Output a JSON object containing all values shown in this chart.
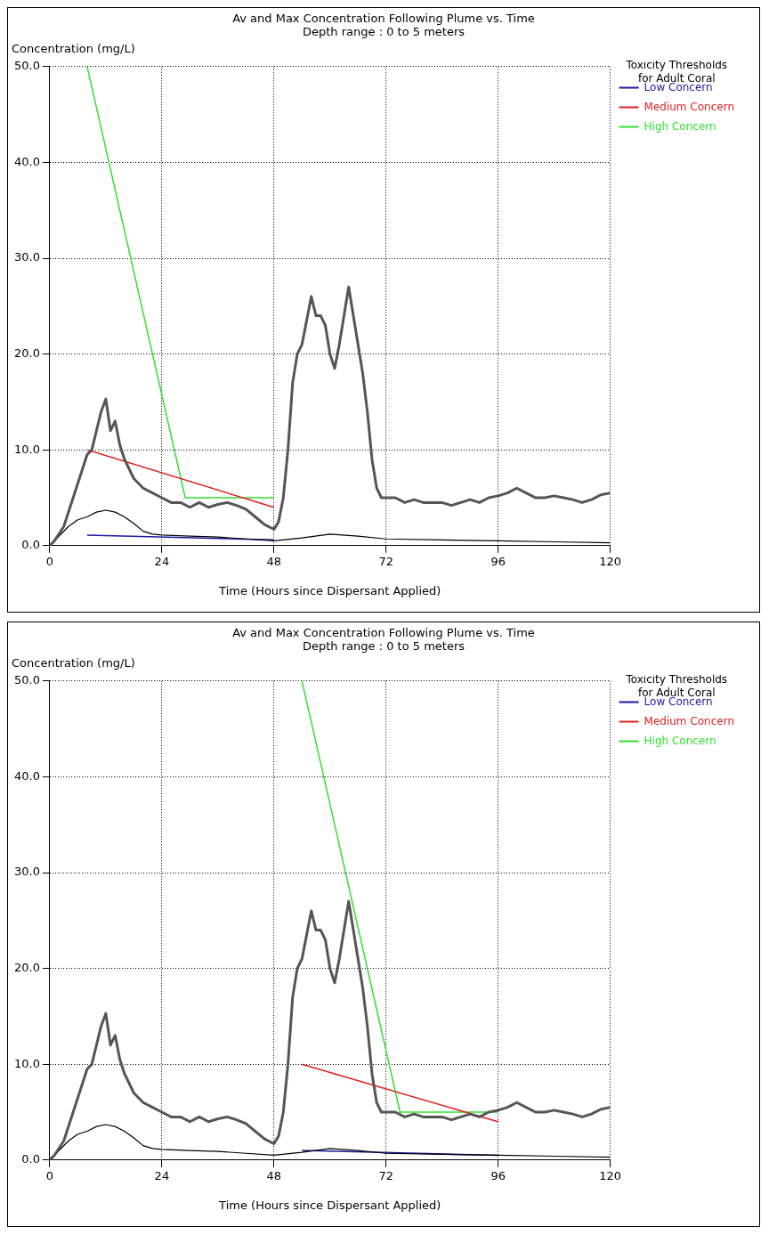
{
  "chart_data": [
    {
      "type": "line",
      "title": "Av and Max Concentration Following Plume vs. Time",
      "subtitle": "Depth range : 0 to 5 meters",
      "ylabel": "Concentration (mg/L)",
      "xlabel": "Time (Hours since Dispersant Applied)",
      "legend_title": "Toxicity Thresholds for Adult Coral",
      "legend": "top right",
      "grid": true,
      "marker": "none",
      "line_style": "solid",
      "xlim": [
        0,
        120
      ],
      "xticks": [
        0,
        24,
        48,
        72,
        96,
        120
      ],
      "ylim": [
        0,
        50
      ],
      "yticks": [
        {
          "value": 0,
          "label": "0.0"
        },
        {
          "value": 10,
          "label": "10.0"
        },
        {
          "value": 20,
          "label": "20.0"
        },
        {
          "value": 30,
          "label": "30.0"
        },
        {
          "value": 40,
          "label": "40.0"
        },
        {
          "value": 50,
          "label": "50.0"
        }
      ],
      "series": [
        {
          "color": "#555555",
          "x": [
            0,
            1,
            3,
            5,
            7,
            8,
            9,
            10,
            11,
            12,
            13,
            14,
            15,
            16,
            17,
            18,
            20,
            22,
            24,
            26,
            28,
            30,
            32,
            34,
            36,
            38,
            40,
            42,
            44,
            46,
            48,
            49,
            50,
            51,
            52,
            53,
            54,
            55,
            56,
            57,
            58,
            59,
            60,
            61,
            62,
            63,
            64,
            65,
            66,
            67,
            68,
            69,
            70,
            71,
            72,
            74,
            76,
            78,
            80,
            82,
            84,
            86,
            88,
            90,
            92,
            94,
            96,
            98,
            100,
            102,
            104,
            106,
            108,
            110,
            112,
            114,
            116,
            118,
            120
          ],
          "values": [
            0,
            0.5,
            2,
            5,
            8,
            9.5,
            10,
            12,
            14,
            15.3,
            12,
            13,
            10.5,
            9,
            8,
            7,
            6,
            5.5,
            5,
            4.5,
            4.5,
            4,
            4.5,
            4,
            4.3,
            4.5,
            4.2,
            3.8,
            3,
            2.2,
            1.7,
            2.5,
            5,
            10,
            17,
            20,
            21,
            23.5,
            26,
            24,
            24,
            23,
            20,
            18.5,
            21,
            24,
            27,
            24,
            21,
            18,
            14,
            9,
            6,
            5,
            5,
            5,
            4.5,
            4.8,
            4.5,
            4.5,
            4.5,
            4.2,
            4.5,
            4.8,
            4.5,
            5,
            5.2,
            5.5,
            6,
            5.5,
            5,
            5,
            5.2,
            5,
            4.8,
            4.5,
            4.8,
            5.3,
            5.5
          ]
        },
        {
          "color": "#000000",
          "x": [
            0,
            2,
            4,
            6,
            8,
            10,
            12,
            14,
            16,
            18,
            20,
            22,
            24,
            30,
            36,
            42,
            48,
            54,
            60,
            66,
            72,
            84,
            96,
            108,
            120
          ],
          "values": [
            0,
            1,
            2,
            2.7,
            3,
            3.5,
            3.7,
            3.5,
            3,
            2.3,
            1.5,
            1.2,
            1.1,
            1,
            0.9,
            0.7,
            0.5,
            0.8,
            1.2,
            1,
            0.7,
            0.6,
            0.5,
            0.4,
            0.3
          ]
        },
        {
          "name": "Low Concern",
          "color": "#1a1aa0",
          "x": [
            8,
            48
          ],
          "values": [
            1.1,
            0.6
          ]
        },
        {
          "name": "Medium Concern",
          "color": "#e02020",
          "x": [
            8,
            48
          ],
          "values": [
            10,
            4
          ]
        },
        {
          "name": "High Concern",
          "color": "#30e030",
          "x": [
            8,
            29,
            48
          ],
          "values": [
            50,
            5,
            5
          ]
        }
      ]
    },
    {
      "type": "line",
      "title": "Av and Max Concentration Following Plume vs. Time",
      "subtitle": "Depth range : 0 to 5 meters",
      "ylabel": "Concentration (mg/L)",
      "xlabel": "Time (Hours since Dispersant Applied)",
      "legend_title": "Toxicity Thresholds for Adult Coral",
      "legend": "top right",
      "grid": true,
      "marker": "none",
      "line_style": "solid",
      "xlim": [
        0,
        120
      ],
      "xticks": [
        0,
        24,
        48,
        72,
        96,
        120
      ],
      "ylim": [
        0,
        50
      ],
      "yticks": [
        {
          "value": 0,
          "label": "0.0"
        },
        {
          "value": 10,
          "label": "10.0"
        },
        {
          "value": 20,
          "label": "20.0"
        },
        {
          "value": 30,
          "label": "30.0"
        },
        {
          "value": 40,
          "label": "40.0"
        },
        {
          "value": 50,
          "label": "50.0"
        }
      ],
      "series": [
        {
          "color": "#555555",
          "x": [
            0,
            1,
            3,
            5,
            7,
            8,
            9,
            10,
            11,
            12,
            13,
            14,
            15,
            16,
            17,
            18,
            20,
            22,
            24,
            26,
            28,
            30,
            32,
            34,
            36,
            38,
            40,
            42,
            44,
            46,
            48,
            49,
            50,
            51,
            52,
            53,
            54,
            55,
            56,
            57,
            58,
            59,
            60,
            61,
            62,
            63,
            64,
            65,
            66,
            67,
            68,
            69,
            70,
            71,
            72,
            74,
            76,
            78,
            80,
            82,
            84,
            86,
            88,
            90,
            92,
            94,
            96,
            98,
            100,
            102,
            104,
            106,
            108,
            110,
            112,
            114,
            116,
            118,
            120
          ],
          "values": [
            0,
            0.5,
            2,
            5,
            8,
            9.5,
            10,
            12,
            14,
            15.3,
            12,
            13,
            10.5,
            9,
            8,
            7,
            6,
            5.5,
            5,
            4.5,
            4.5,
            4,
            4.5,
            4,
            4.3,
            4.5,
            4.2,
            3.8,
            3,
            2.2,
            1.7,
            2.5,
            5,
            10,
            17,
            20,
            21,
            23.5,
            26,
            24,
            24,
            23,
            20,
            18.5,
            21,
            24,
            27,
            24,
            21,
            18,
            14,
            9,
            6,
            5,
            5,
            5,
            4.5,
            4.8,
            4.5,
            4.5,
            4.5,
            4.2,
            4.5,
            4.8,
            4.5,
            5,
            5.2,
            5.5,
            6,
            5.5,
            5,
            5,
            5.2,
            5,
            4.8,
            4.5,
            4.8,
            5.3,
            5.5
          ]
        },
        {
          "color": "#000000",
          "x": [
            0,
            2,
            4,
            6,
            8,
            10,
            12,
            14,
            16,
            18,
            20,
            22,
            24,
            30,
            36,
            42,
            48,
            54,
            60,
            66,
            72,
            84,
            96,
            108,
            120
          ],
          "values": [
            0,
            1,
            2,
            2.7,
            3,
            3.5,
            3.7,
            3.5,
            3,
            2.3,
            1.5,
            1.2,
            1.1,
            1,
            0.9,
            0.7,
            0.5,
            0.8,
            1.2,
            1,
            0.7,
            0.6,
            0.5,
            0.4,
            0.3
          ]
        },
        {
          "name": "Low Concern",
          "color": "#1a1aa0",
          "x": [
            54,
            96
          ],
          "values": [
            1,
            0.5
          ]
        },
        {
          "name": "Medium Concern",
          "color": "#e02020",
          "x": [
            54,
            96
          ],
          "values": [
            10,
            4
          ]
        },
        {
          "name": "High Concern",
          "color": "#30e030",
          "x": [
            54,
            75,
            96
          ],
          "values": [
            50,
            5,
            5
          ]
        }
      ]
    }
  ]
}
